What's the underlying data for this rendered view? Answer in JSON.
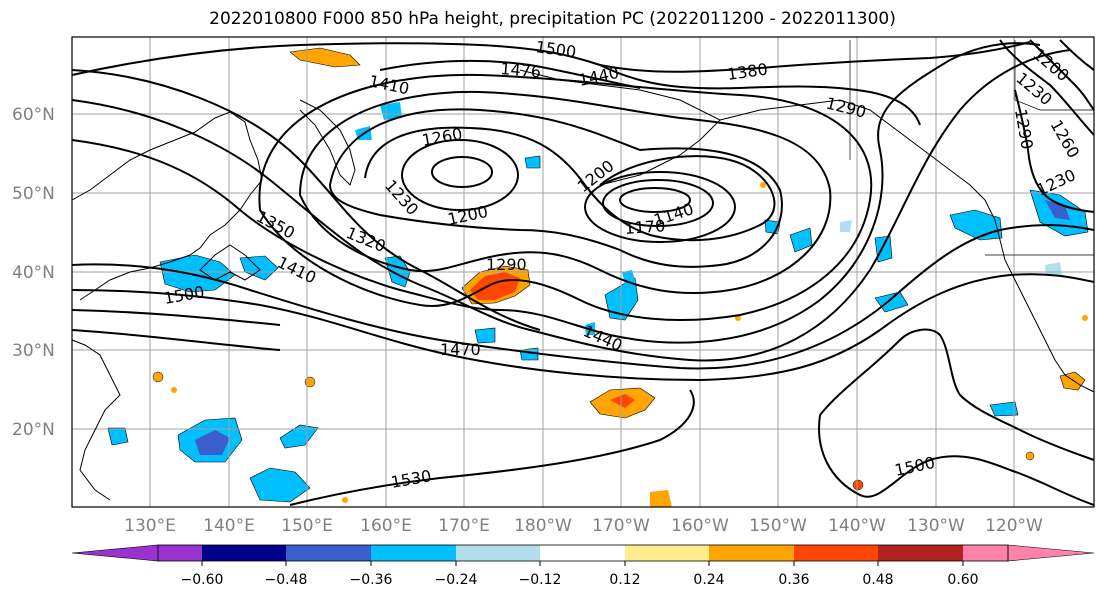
{
  "title": "2022010800 F000 850 hPa height, precipitation PC (2022011200 - 2022011300)",
  "lat_labels": [
    "60°N",
    "50°N",
    "40°N",
    "30°N",
    "20°N"
  ],
  "lon_labels": [
    "130°E",
    "140°E",
    "150°E",
    "160°E",
    "170°E",
    "180°W",
    "170°W",
    "160°W",
    "150°W",
    "140°W",
    "130°W",
    "120°W"
  ],
  "contour_labels": [
    "1500",
    "1476",
    "1440",
    "1410",
    "1380",
    "1290",
    "1260",
    "1230",
    "1200",
    "1200",
    "1170",
    "1140",
    "1350",
    "1320",
    "1410",
    "1290",
    "1500",
    "1470",
    "1440",
    "1530",
    "1500",
    "1200",
    "1230",
    "1260",
    "1290",
    "1230"
  ],
  "colorbar": {
    "ticks": [
      "−0.60",
      "−0.48",
      "−0.36",
      "−0.24",
      "−0.12",
      "0.12",
      "0.24",
      "0.36",
      "0.48",
      "0.60"
    ],
    "colors": [
      "#9a32cd",
      "#00008b",
      "#3a5fcd",
      "#00bfff",
      "#b2dfee",
      "#ffffff",
      "#ffec8b",
      "#ffa500",
      "#ff4500",
      "#b22222",
      "#ff82ab"
    ]
  },
  "shading_colors": {
    "neg_light": "#00bfff",
    "neg_mid": "#3a5fcd",
    "pos_light": "#ffa500",
    "pos_mid": "#ff4500",
    "pos_pale": "#ffec8b"
  }
}
